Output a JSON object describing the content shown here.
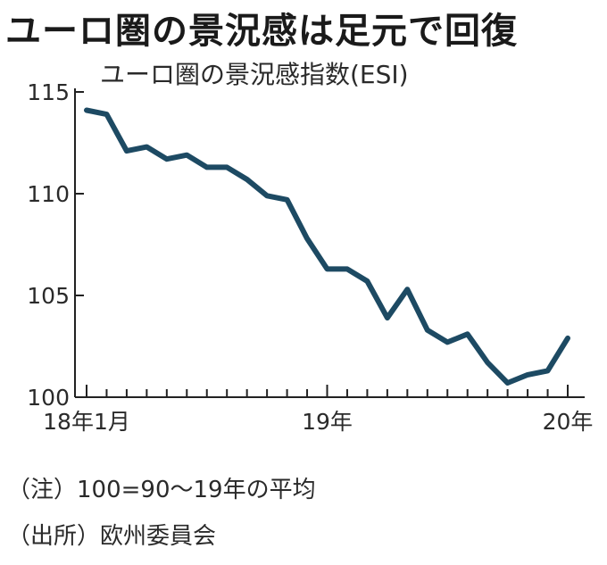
{
  "chart_data": {
    "type": "line",
    "title": "ユーロ圏の景況感は足元で回復",
    "subtitle": "ユーロ圏の景況感指数(ESI)",
    "xlabel": "",
    "ylabel": "",
    "x": [
      "2018-01",
      "2018-02",
      "2018-03",
      "2018-04",
      "2018-05",
      "2018-06",
      "2018-07",
      "2018-08",
      "2018-09",
      "2018-10",
      "2018-11",
      "2018-12",
      "2019-01",
      "2019-02",
      "2019-03",
      "2019-04",
      "2019-05",
      "2019-06",
      "2019-07",
      "2019-08",
      "2019-09",
      "2019-10",
      "2019-11",
      "2019-12",
      "2020-01"
    ],
    "series": [
      {
        "values": [
          114.1,
          113.9,
          112.1,
          112.3,
          111.7,
          111.9,
          111.3,
          111.3,
          110.7,
          109.9,
          109.7,
          107.8,
          106.3,
          106.3,
          105.7,
          103.9,
          105.3,
          103.3,
          102.7,
          103.1,
          101.7,
          100.7,
          101.1,
          101.3,
          102.9
        ]
      }
    ],
    "ylim": [
      100,
      115
    ],
    "yticks": [
      100,
      105,
      110,
      115
    ],
    "xtick_labels": [
      {
        "x": "2018-01",
        "label": "18年1月"
      },
      {
        "x": "2019-01",
        "label": "19年"
      },
      {
        "x": "2020-01",
        "label": "20年"
      }
    ],
    "line_color": "#1d4a63",
    "grid": false
  },
  "notes": {
    "note1": "（注）100=90～19年の平均",
    "note2": "（出所）欧州委員会"
  }
}
